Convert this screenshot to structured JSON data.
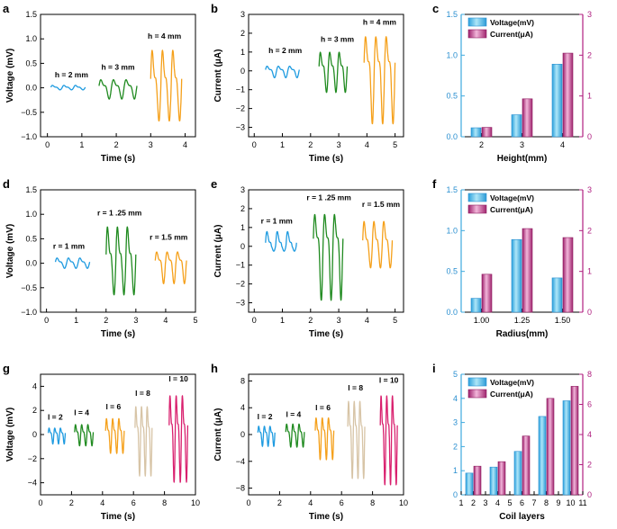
{
  "colors": {
    "blue": "#1f9be0",
    "green": "#1f8a1f",
    "orange": "#f5a01a",
    "tan": "#d7c4a6",
    "magenta": "#d9206e",
    "bar_blue": "#5ec8ec",
    "bar_pink": "#c0408a",
    "right_axis": "#b02080"
  },
  "chart_data": [
    {
      "id": "a",
      "panel_label": "a",
      "type": "line",
      "xlabel": "Time (s)",
      "ylabel": "Voltage (mV)",
      "xlim": [
        -0.2,
        4.3
      ],
      "ylim": [
        -1.0,
        1.5
      ],
      "xticks": [
        0,
        1,
        2,
        3,
        4
      ],
      "xtick_labels": [
        "0",
        "1",
        "2",
        "3",
        "4"
      ],
      "yticks": [
        -1.0,
        -0.5,
        0.0,
        0.5,
        1.0,
        1.5
      ],
      "ytick_labels": [
        "−1.0",
        "−0.5",
        "0.0",
        "0.5",
        "1.0",
        "1.5"
      ],
      "series": [
        {
          "name": "h = 2 mm",
          "color": "blue",
          "x_start": 0.1,
          "x_end": 1.1,
          "amp_pos": 0.06,
          "amp_neg": 0.04,
          "cycles": 3,
          "label_data": [
            0.7,
            0.21
          ]
        },
        {
          "name": "h = 3 mm",
          "color": "green",
          "x_start": 1.5,
          "x_end": 2.6,
          "amp_pos": 0.2,
          "amp_neg": 0.22,
          "cycles": 3,
          "label_data": [
            2.05,
            0.37
          ]
        },
        {
          "name": "h = 4 mm",
          "color": "orange",
          "x_start": 3.0,
          "x_end": 3.9,
          "amp_pos": 0.93,
          "amp_neg": 0.65,
          "cycles": 3,
          "label_data": [
            3.4,
            1.0
          ]
        }
      ]
    },
    {
      "id": "b",
      "panel_label": "b",
      "type": "line",
      "xlabel": "Time (s)",
      "ylabel": "Current (μA)",
      "xlim": [
        -0.2,
        5.3
      ],
      "ylim": [
        -3.5,
        3.0
      ],
      "xticks": [
        0,
        1,
        2,
        3,
        4,
        5
      ],
      "xtick_labels": [
        "0",
        "1",
        "2",
        "3",
        "4",
        "5"
      ],
      "yticks": [
        -3,
        -2,
        -1,
        0,
        1,
        2,
        3
      ],
      "ytick_labels": [
        "−3",
        "−2",
        "−1",
        "0",
        "1",
        "2",
        "3"
      ],
      "series": [
        {
          "name": "h = 2 mm",
          "color": "blue",
          "x_start": 0.4,
          "x_end": 1.6,
          "amp_pos": 0.3,
          "amp_neg": 0.35,
          "cycles": 3,
          "label_data": [
            1.1,
            0.95
          ]
        },
        {
          "name": "h = 3 mm",
          "color": "green",
          "x_start": 2.3,
          "x_end": 3.3,
          "amp_pos": 1.2,
          "amp_neg": 1.1,
          "cycles": 3,
          "label_data": [
            2.95,
            1.55
          ]
        },
        {
          "name": "h = 4 mm",
          "color": "orange",
          "x_start": 3.9,
          "x_end": 5.0,
          "amp_pos": 2.2,
          "amp_neg": 2.7,
          "cycles": 3,
          "label_data": [
            4.45,
            2.45
          ]
        }
      ]
    },
    {
      "id": "c",
      "panel_label": "c",
      "type": "bar",
      "xlabel": "Height(mm)",
      "categories": [
        "2",
        "3",
        "4"
      ],
      "ylim": [
        0,
        1.5
      ],
      "yticks": [
        0.0,
        0.5,
        1.0,
        1.5
      ],
      "ytick_labels": [
        "0.0",
        "0.5",
        "1.0",
        "1.5"
      ],
      "y2lim": [
        0,
        3
      ],
      "y2ticks": [
        0,
        1,
        2,
        3
      ],
      "y2tick_labels": [
        "0",
        "1",
        "2",
        "3"
      ],
      "legend": [
        "Voltage(mV)",
        "Current(μA)"
      ],
      "series": [
        {
          "name": "Voltage(mV)",
          "axis": "left",
          "values": [
            0.11,
            0.27,
            0.89
          ]
        },
        {
          "name": "Current(μA)",
          "axis": "right",
          "values": [
            0.23,
            0.93,
            2.05
          ]
        }
      ]
    },
    {
      "id": "d",
      "panel_label": "d",
      "type": "line",
      "xlabel": "Time (s)",
      "ylabel": "Voltage (mV)",
      "xlim": [
        -0.2,
        5.0
      ],
      "ylim": [
        -1.0,
        1.5
      ],
      "xticks": [
        0,
        1,
        2,
        3,
        4,
        5
      ],
      "xtick_labels": [
        "0",
        "1",
        "2",
        "3",
        "4",
        "5"
      ],
      "yticks": [
        -1.0,
        -0.5,
        0.0,
        0.5,
        1.0,
        1.5
      ],
      "ytick_labels": [
        "−1.0",
        "−0.5",
        "0.0",
        "0.5",
        "1.0",
        "1.5"
      ],
      "series": [
        {
          "name": "r = 1 mm",
          "color": "blue",
          "x_start": 0.3,
          "x_end": 1.45,
          "amp_pos": 0.13,
          "amp_neg": 0.1,
          "cycles": 3,
          "label_data": [
            0.75,
            0.3
          ]
        },
        {
          "name": "r = 1 .25 mm",
          "color": "green",
          "x_start": 2.0,
          "x_end": 3.0,
          "amp_pos": 0.9,
          "amp_neg": 0.62,
          "cycles": 3,
          "label_data": [
            2.45,
            0.98
          ]
        },
        {
          "name": "r = 1.5 mm",
          "color": "orange",
          "x_start": 3.65,
          "x_end": 4.7,
          "amp_pos": 0.28,
          "amp_neg": 0.4,
          "cycles": 3,
          "label_data": [
            4.1,
            0.48
          ]
        }
      ]
    },
    {
      "id": "e",
      "panel_label": "e",
      "type": "line",
      "xlabel": "Time (s)",
      "ylabel": "Current (μA)",
      "xlim": [
        -0.2,
        5.3
      ],
      "ylim": [
        -3.5,
        3.0
      ],
      "xticks": [
        0,
        1,
        2,
        3,
        4,
        5
      ],
      "xtick_labels": [
        "0",
        "1",
        "2",
        "3",
        "4",
        "5"
      ],
      "yticks": [
        -3,
        -2,
        -1,
        0,
        1,
        2,
        3
      ],
      "ytick_labels": [
        "−3",
        "−2",
        "−1",
        "0",
        "1",
        "2",
        "3"
      ],
      "series": [
        {
          "name": "r = 1 mm",
          "color": "blue",
          "x_start": 0.4,
          "x_end": 1.5,
          "amp_pos": 0.95,
          "amp_neg": 0.25,
          "cycles": 3,
          "label_data": [
            0.8,
            1.2
          ]
        },
        {
          "name": "r = 1 .25 mm",
          "color": "green",
          "x_start": 2.1,
          "x_end": 3.15,
          "amp_pos": 2.05,
          "amp_neg": 2.75,
          "cycles": 3,
          "label_data": [
            2.65,
            2.45
          ]
        },
        {
          "name": "r = 1.5 mm",
          "color": "orange",
          "x_start": 3.85,
          "x_end": 4.9,
          "amp_pos": 1.6,
          "amp_neg": 1.1,
          "cycles": 3,
          "label_data": [
            4.5,
            2.1
          ]
        }
      ]
    },
    {
      "id": "f",
      "panel_label": "f",
      "type": "bar",
      "xlabel": "Radius(mm)",
      "categories": [
        "1.00",
        "1.25",
        "1.50"
      ],
      "ylim": [
        0,
        1.5
      ],
      "yticks": [
        0.0,
        0.5,
        1.0,
        1.5
      ],
      "ytick_labels": [
        "0.0",
        "0.5",
        "1.0",
        "1.5"
      ],
      "y2lim": [
        0,
        3
      ],
      "y2ticks": [
        0,
        1,
        2,
        3
      ],
      "y2tick_labels": [
        "0",
        "1",
        "2",
        "3"
      ],
      "legend": [
        "Voltage(mV)",
        "Current(μA)"
      ],
      "series": [
        {
          "name": "Voltage(mV)",
          "axis": "left",
          "values": [
            0.17,
            0.89,
            0.42
          ]
        },
        {
          "name": "Current(μA)",
          "axis": "right",
          "values": [
            0.93,
            2.05,
            1.83
          ]
        }
      ]
    },
    {
      "id": "g",
      "panel_label": "g",
      "type": "line",
      "xlabel": "Time (s)",
      "ylabel": "Voltage (mV)",
      "xlim": [
        0,
        10
      ],
      "ylim": [
        -5,
        5
      ],
      "xticks": [
        0,
        2,
        4,
        6,
        8,
        10
      ],
      "xtick_labels": [
        "0",
        "2",
        "4",
        "6",
        "8",
        "10"
      ],
      "yticks": [
        -4,
        -2,
        0,
        2,
        4
      ],
      "ytick_labels": [
        "−4",
        "−2",
        "0",
        "2",
        "4"
      ],
      "series": [
        {
          "name": "l = 2",
          "color": "blue",
          "x_start": 0.5,
          "x_end": 1.6,
          "amp_pos": 0.65,
          "amp_neg": 0.75,
          "cycles": 3,
          "label_data": [
            0.95,
            1.25
          ]
        },
        {
          "name": "l = 4",
          "color": "green",
          "x_start": 2.2,
          "x_end": 3.4,
          "amp_pos": 1.0,
          "amp_neg": 0.9,
          "cycles": 3,
          "label_data": [
            2.65,
            1.6
          ]
        },
        {
          "name": "l = 6",
          "color": "orange",
          "x_start": 4.2,
          "x_end": 5.4,
          "amp_pos": 1.6,
          "amp_neg": 1.5,
          "cycles": 3,
          "label_data": [
            4.7,
            2.1
          ]
        },
        {
          "name": "l = 8",
          "color": "tan",
          "x_start": 6.1,
          "x_end": 7.2,
          "amp_pos": 2.8,
          "amp_neg": 3.3,
          "cycles": 3,
          "label_data": [
            6.6,
            3.2
          ]
        },
        {
          "name": "l = 10",
          "color": "magenta",
          "x_start": 8.3,
          "x_end": 9.5,
          "amp_pos": 3.9,
          "amp_neg": 3.8,
          "cycles": 3,
          "label_data": [
            8.9,
            4.4
          ]
        }
      ]
    },
    {
      "id": "h",
      "panel_label": "h",
      "type": "line",
      "xlabel": "Time (s)",
      "ylabel": "Current (μA)",
      "xlim": [
        0,
        10
      ],
      "ylim": [
        -9,
        9
      ],
      "xticks": [
        0,
        2,
        4,
        6,
        8,
        10
      ],
      "xtick_labels": [
        "0",
        "2",
        "4",
        "6",
        "8",
        "10"
      ],
      "yticks": [
        -8,
        -4,
        0,
        4,
        8
      ],
      "ytick_labels": [
        "−8",
        "−4",
        "0",
        "4",
        "8"
      ],
      "series": [
        {
          "name": "l = 2",
          "color": "blue",
          "x_start": 0.6,
          "x_end": 1.7,
          "amp_pos": 1.5,
          "amp_neg": 1.7,
          "cycles": 3,
          "label_data": [
            1.05,
            2.3
          ]
        },
        {
          "name": "l = 4",
          "color": "green",
          "x_start": 2.4,
          "x_end": 3.6,
          "amp_pos": 1.9,
          "amp_neg": 1.8,
          "cycles": 3,
          "label_data": [
            2.9,
            2.6
          ]
        },
        {
          "name": "l = 6",
          "color": "orange",
          "x_start": 4.3,
          "x_end": 5.5,
          "amp_pos": 3.0,
          "amp_neg": 3.6,
          "cycles": 3,
          "label_data": [
            4.8,
            3.6
          ]
        },
        {
          "name": "l = 8",
          "color": "tan",
          "x_start": 6.4,
          "x_end": 7.5,
          "amp_pos": 6.0,
          "amp_neg": 6.3,
          "cycles": 3,
          "label_data": [
            6.9,
            6.6
          ]
        },
        {
          "name": "l = 10",
          "color": "magenta",
          "x_start": 8.5,
          "x_end": 9.6,
          "amp_pos": 7.0,
          "amp_neg": 7.2,
          "cycles": 3,
          "label_data": [
            9.05,
            7.7
          ]
        }
      ]
    },
    {
      "id": "i",
      "panel_label": "i",
      "type": "bar",
      "xlabel": "Coil layers",
      "categories": [
        "2",
        "4",
        "6",
        "8",
        "10"
      ],
      "x_numeric": [
        2,
        4,
        6,
        8,
        10
      ],
      "xlim": [
        1,
        11
      ],
      "xticks": [
        1,
        2,
        3,
        4,
        5,
        6,
        7,
        8,
        9,
        10,
        11
      ],
      "xtick_labels": [
        "1",
        "2",
        "3",
        "4",
        "5",
        "6",
        "7",
        "8",
        "9",
        "10",
        "11"
      ],
      "ylim": [
        0,
        5
      ],
      "yticks": [
        0,
        1,
        2,
        3,
        4,
        5
      ],
      "ytick_labels": [
        "0",
        "1",
        "2",
        "3",
        "4",
        "5"
      ],
      "y2lim": [
        0,
        8
      ],
      "y2ticks": [
        0,
        2,
        4,
        6,
        8
      ],
      "y2tick_labels": [
        "0",
        "2",
        "4",
        "6",
        "8"
      ],
      "legend": [
        "Voltage(mV)",
        "Current(μA)"
      ],
      "series": [
        {
          "name": "Voltage(mV)",
          "axis": "left",
          "values": [
            0.9,
            1.15,
            1.8,
            3.25,
            3.9
          ]
        },
        {
          "name": "Current(μA)",
          "axis": "right",
          "values": [
            1.9,
            2.2,
            3.9,
            6.4,
            7.2
          ]
        }
      ]
    }
  ]
}
